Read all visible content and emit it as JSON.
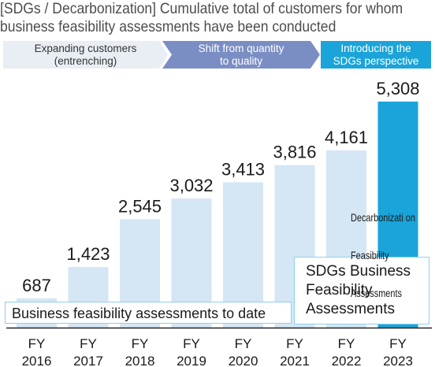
{
  "title": {
    "line1": "[SDGs / Decarbonization] Cumulative total of customers for whom",
    "line2": "business feasibility assessments have been conducted"
  },
  "phases": [
    {
      "label": "Expanding customers\n(entrenching)"
    },
    {
      "label": "Shift from quantity\nto quality"
    },
    {
      "label": "Introducing the\nSDGs perspective"
    }
  ],
  "colors": {
    "bar": "#d5e6f5",
    "highlight": "#1aa4d9",
    "phase2": "#7b8ec4",
    "phase1": "#e9eef4"
  },
  "chart_data": {
    "type": "bar",
    "categories": [
      "FY\n2016",
      "FY\n2017",
      "FY\n2018",
      "FY\n2019",
      "FY\n2020",
      "FY\n2021",
      "FY\n2022",
      "FY\n2023"
    ],
    "values": [
      687,
      1423,
      2545,
      3032,
      3413,
      3816,
      4161,
      5308
    ],
    "value_labels": [
      "687",
      "1,423",
      "2,545",
      "3,032",
      "3,413",
      "3,816",
      "4,161",
      "5,308"
    ],
    "highlight_index": 7,
    "ylim": [
      0,
      5308
    ],
    "grid": false,
    "title": "[SDGs / Decarbonization] Cumulative total of customers for whom business feasibility assessments have been conducted"
  },
  "annotations": {
    "to_date": "Business feasibility assessments to date",
    "sdgs": "SDGs Business\nFeasibility\nAssessments",
    "decarb": [
      "Decarbonizati on",
      "Feasibility",
      "Assessments"
    ]
  }
}
